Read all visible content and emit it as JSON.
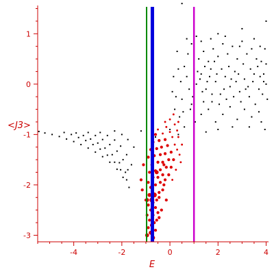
{
  "chart_data": {
    "type": "scatter",
    "xlabel": "E",
    "ylabel": "<J3>",
    "xlim": [
      -5.5,
      4.1
    ],
    "ylim": [
      -3.13,
      1.67
    ],
    "x_ticks": [
      -4,
      -2,
      0,
      2,
      4
    ],
    "y_ticks": [
      1,
      0,
      -1,
      -2,
      -3
    ],
    "x_tick_labels": [
      "-4",
      "-2",
      "0",
      "2",
      "4"
    ],
    "y_tick_labels": [
      "1",
      "0",
      "-1",
      "-2",
      "-3"
    ],
    "grid": false,
    "colors": {
      "axis": "#cc0000",
      "tick_text": "#cc0000",
      "black_points": "#000000",
      "red_points": "#dd0000",
      "line_green": "#008800",
      "line_blue": "#0000dd",
      "line_magenta": "#cc00cc"
    },
    "vertical_lines": [
      {
        "x": -0.97,
        "color": "#008800",
        "width": "thin"
      },
      {
        "x": -0.73,
        "color": "#0000dd",
        "width": "thick"
      },
      {
        "x": 1.0,
        "color": "#cc00cc",
        "width": "medium"
      }
    ],
    "series": [
      {
        "points_black": [
          [
            -5.45,
            -0.94
          ],
          [
            -5.2,
            -0.97
          ],
          [
            -4.9,
            -1.0
          ],
          [
            -4.6,
            -1.04
          ],
          [
            -4.3,
            -1.09
          ],
          [
            -4.0,
            -1.14
          ],
          [
            -3.7,
            -1.2
          ],
          [
            -3.4,
            -1.27
          ],
          [
            -3.1,
            -1.35
          ],
          [
            -2.8,
            -1.44
          ],
          [
            -2.5,
            -1.55
          ],
          [
            -2.2,
            -1.69
          ],
          [
            -1.95,
            -1.85
          ],
          [
            -1.7,
            -2.05
          ],
          [
            -4.4,
            -0.96
          ],
          [
            -4.1,
            -1.0
          ],
          [
            -3.8,
            -1.06
          ],
          [
            -3.5,
            -1.12
          ],
          [
            -3.2,
            -1.2
          ],
          [
            -2.9,
            -1.29
          ],
          [
            -2.6,
            -1.41
          ],
          [
            -2.3,
            -1.55
          ],
          [
            -2.05,
            -1.7
          ],
          [
            -1.8,
            -1.9
          ],
          [
            -3.9,
            -0.97
          ],
          [
            -3.6,
            -1.02
          ],
          [
            -3.3,
            -1.09
          ],
          [
            -3.0,
            -1.17
          ],
          [
            -2.7,
            -1.27
          ],
          [
            -2.4,
            -1.4
          ],
          [
            -2.1,
            -1.56
          ],
          [
            -1.85,
            -1.75
          ],
          [
            -3.4,
            -0.96
          ],
          [
            -3.1,
            -1.02
          ],
          [
            -2.8,
            -1.1
          ],
          [
            -2.5,
            -1.2
          ],
          [
            -2.2,
            -1.33
          ],
          [
            -1.95,
            -1.5
          ],
          [
            -1.75,
            -1.7
          ],
          [
            -2.9,
            -0.96
          ],
          [
            -2.6,
            -1.02
          ],
          [
            -2.3,
            -1.11
          ],
          [
            -2.05,
            -1.23
          ],
          [
            -1.8,
            -1.4
          ],
          [
            -1.6,
            -1.6
          ],
          [
            -2.3,
            -0.93
          ],
          [
            -2.0,
            -1.0
          ],
          [
            -1.75,
            -1.1
          ],
          [
            -1.5,
            -1.25
          ],
          [
            -1.2,
            -0.93
          ],
          [
            -0.6,
            -1.05
          ],
          [
            0.0,
            -0.9
          ],
          [
            0.35,
            -1.0
          ],
          [
            0.6,
            -0.85
          ],
          [
            0.2,
            -0.5
          ],
          [
            0.9,
            -0.4
          ],
          [
            0.5,
            -0.3
          ],
          [
            0.8,
            -0.1
          ],
          [
            1.1,
            0.0
          ],
          [
            1.3,
            0.2
          ],
          [
            1.5,
            -0.1
          ],
          [
            1.7,
            0.3
          ],
          [
            1.9,
            0.05
          ],
          [
            2.1,
            -0.2
          ],
          [
            2.3,
            0.15
          ],
          [
            2.5,
            -0.05
          ],
          [
            2.7,
            0.25
          ],
          [
            2.9,
            -0.15
          ],
          [
            3.1,
            0.1
          ],
          [
            3.3,
            -0.25
          ],
          [
            3.5,
            0.2
          ],
          [
            3.7,
            -0.1
          ],
          [
            3.9,
            0.05
          ],
          [
            4.05,
            -0.3
          ],
          [
            1.2,
            0.5
          ],
          [
            1.4,
            0.65
          ],
          [
            1.6,
            0.45
          ],
          [
            1.8,
            0.7
          ],
          [
            2.0,
            0.55
          ],
          [
            2.2,
            0.8
          ],
          [
            2.4,
            0.6
          ],
          [
            2.6,
            0.75
          ],
          [
            2.8,
            0.5
          ],
          [
            3.0,
            0.85
          ],
          [
            3.2,
            0.6
          ],
          [
            3.4,
            0.7
          ],
          [
            3.6,
            0.5
          ],
          [
            3.8,
            0.45
          ],
          [
            4.0,
            0.4
          ],
          [
            0.9,
            0.8
          ],
          [
            1.1,
            0.95
          ],
          [
            2.0,
            1.0
          ],
          [
            3.0,
            1.1
          ],
          [
            4.0,
            1.25
          ],
          [
            0.5,
            1.6
          ],
          [
            1.3,
            -0.6
          ],
          [
            1.6,
            -0.5
          ],
          [
            1.9,
            -0.75
          ],
          [
            2.2,
            -0.6
          ],
          [
            2.5,
            -0.45
          ],
          [
            2.8,
            -0.7
          ],
          [
            3.1,
            -0.5
          ],
          [
            3.4,
            -0.65
          ],
          [
            3.7,
            -0.55
          ],
          [
            3.95,
            -0.9
          ],
          [
            1.05,
            -0.75
          ],
          [
            1.4,
            -0.35
          ],
          [
            1.75,
            -0.2
          ],
          [
            2.05,
            -0.4
          ],
          [
            2.35,
            -0.3
          ],
          [
            2.65,
            -0.25
          ],
          [
            2.95,
            -0.35
          ],
          [
            3.25,
            -0.05
          ],
          [
            3.55,
            -0.4
          ],
          [
            3.85,
            -0.2
          ],
          [
            0.3,
            0.65
          ],
          [
            0.6,
            0.35
          ],
          [
            0.75,
            0.6
          ],
          [
            1.0,
            0.3
          ],
          [
            1.25,
            0.1
          ],
          [
            1.45,
            0.35
          ],
          [
            1.65,
            0.15
          ],
          [
            1.85,
            0.45
          ],
          [
            2.15,
            0.3
          ],
          [
            2.45,
            0.35
          ],
          [
            2.75,
            0.05
          ],
          [
            3.05,
            0.4
          ],
          [
            3.35,
            0.3
          ],
          [
            3.65,
            0.35
          ],
          [
            3.9,
            0.2
          ],
          [
            0.45,
            0.05
          ],
          [
            0.7,
            0.15
          ],
          [
            0.95,
            -0.25
          ],
          [
            1.15,
            0.25
          ],
          [
            1.35,
            -0.15
          ],
          [
            1.55,
            0.05
          ],
          [
            1.75,
            -0.35
          ],
          [
            1.95,
            0.2
          ],
          [
            2.25,
            -0.1
          ],
          [
            2.55,
            0.1
          ],
          [
            2.85,
            0.2
          ],
          [
            3.15,
            -0.1
          ],
          [
            3.45,
            0.05
          ],
          [
            3.75,
            0.15
          ],
          [
            4.0,
            0.0
          ],
          [
            0.4,
            -0.65
          ],
          [
            0.25,
            -0.25
          ],
          [
            0.55,
            -0.55
          ],
          [
            0.85,
            -0.5
          ],
          [
            2.0,
            -0.9
          ],
          [
            2.6,
            -0.85
          ],
          [
            3.3,
            -0.85
          ],
          [
            3.8,
            -0.75
          ],
          [
            1.5,
            -0.95
          ],
          [
            0.1,
            -0.15
          ],
          [
            1.3,
            0.85
          ],
          [
            2.3,
            0.95
          ],
          [
            2.9,
            0.75
          ],
          [
            3.5,
            0.9
          ],
          [
            3.75,
            0.75
          ],
          [
            1.7,
            0.9
          ],
          [
            0.7,
            0.9
          ],
          [
            0.35,
            0.3
          ],
          [
            0.15,
            0.15
          ],
          [
            3.95,
            0.7
          ]
        ]
      },
      {
        "points_red": [
          [
            -0.95,
            -3.0,
            4
          ],
          [
            -0.8,
            -2.95,
            4
          ],
          [
            -0.6,
            -2.9,
            3
          ],
          [
            -0.9,
            -2.85,
            3
          ],
          [
            -0.75,
            -2.8,
            4
          ],
          [
            -0.65,
            -2.75,
            3
          ],
          [
            -0.85,
            -2.7,
            3
          ],
          [
            -0.55,
            -2.7,
            3
          ],
          [
            -0.95,
            -2.6,
            3
          ],
          [
            -0.7,
            -2.6,
            3
          ],
          [
            -0.5,
            -2.55,
            3
          ],
          [
            -0.8,
            -2.5,
            3
          ],
          [
            -0.6,
            -2.45,
            3
          ],
          [
            -0.9,
            -2.4,
            3
          ],
          [
            -0.7,
            -2.35,
            3
          ],
          [
            -0.55,
            -2.3,
            3
          ],
          [
            -0.45,
            -2.25,
            3
          ],
          [
            -0.85,
            -2.2,
            4
          ],
          [
            -0.65,
            -2.2,
            5
          ],
          [
            -0.45,
            -2.15,
            3
          ],
          [
            -0.3,
            -2.1,
            3
          ],
          [
            -0.8,
            -2.05,
            3
          ],
          [
            -0.6,
            -2.0,
            3
          ],
          [
            -0.9,
            -1.95,
            3
          ],
          [
            -0.4,
            -1.95,
            3
          ],
          [
            -0.2,
            -1.9,
            3
          ],
          [
            -0.7,
            -1.85,
            3
          ],
          [
            -0.5,
            -1.85,
            3
          ],
          [
            -0.3,
            -1.8,
            3
          ],
          [
            -0.05,
            -1.8,
            3
          ],
          [
            -0.85,
            -1.75,
            3
          ],
          [
            -0.6,
            -1.72,
            3
          ],
          [
            -0.4,
            -1.7,
            3
          ],
          [
            -0.15,
            -1.65,
            3
          ],
          [
            0.05,
            -1.65,
            3
          ],
          [
            -0.75,
            -1.6,
            3
          ],
          [
            -0.5,
            -1.55,
            3
          ],
          [
            -0.3,
            -1.55,
            3
          ],
          [
            -0.05,
            -1.5,
            3
          ],
          [
            0.15,
            -1.5,
            3
          ],
          [
            -0.9,
            -1.45,
            3
          ],
          [
            -0.65,
            -1.42,
            3
          ],
          [
            -0.4,
            -1.4,
            3
          ],
          [
            -0.2,
            -1.38,
            3
          ],
          [
            0.05,
            -1.35,
            3
          ],
          [
            0.3,
            -1.3,
            2
          ],
          [
            -0.8,
            -1.3,
            3
          ],
          [
            -0.55,
            -1.28,
            3
          ],
          [
            -0.35,
            -1.25,
            3
          ],
          [
            -0.1,
            -1.22,
            3
          ],
          [
            0.2,
            -1.2,
            2
          ],
          [
            -0.7,
            -1.15,
            3
          ],
          [
            -0.45,
            -1.12,
            3
          ],
          [
            -0.2,
            -1.1,
            3
          ],
          [
            0.1,
            -1.05,
            2
          ],
          [
            0.35,
            -1.05,
            2
          ],
          [
            -0.6,
            -1.0,
            3
          ],
          [
            -0.3,
            -0.98,
            2
          ],
          [
            0.0,
            -0.95,
            2
          ],
          [
            0.3,
            -0.92,
            2
          ],
          [
            -0.5,
            -0.9,
            2
          ],
          [
            -0.15,
            -0.85,
            2
          ],
          [
            0.2,
            -0.8,
            2
          ],
          [
            0.0,
            -0.7,
            2
          ],
          [
            0.15,
            -0.6,
            2
          ],
          [
            -0.2,
            -0.75,
            2
          ],
          [
            0.35,
            -0.75,
            2
          ],
          [
            -1.1,
            -1.6,
            3
          ],
          [
            -1.2,
            -1.9,
            3
          ],
          [
            -1.0,
            -2.3,
            3
          ],
          [
            -1.15,
            -2.1,
            3
          ],
          [
            -0.25,
            -2.0,
            3
          ],
          [
            -0.15,
            -2.3,
            3
          ],
          [
            -0.35,
            -2.5,
            3
          ],
          [
            -0.45,
            -2.65,
            3
          ],
          [
            -0.7,
            -3.05,
            4
          ],
          [
            -0.95,
            -2.3,
            4
          ],
          [
            -0.75,
            -2.3,
            5
          ],
          [
            -0.55,
            -1.75,
            4
          ],
          [
            -0.25,
            -1.6,
            3
          ],
          [
            0.1,
            -1.9,
            2
          ],
          [
            0.25,
            -1.7,
            2
          ],
          [
            0.4,
            -1.4,
            2
          ],
          [
            0.5,
            -1.2,
            2
          ],
          [
            0.45,
            -1.55,
            2
          ]
        ]
      }
    ]
  }
}
